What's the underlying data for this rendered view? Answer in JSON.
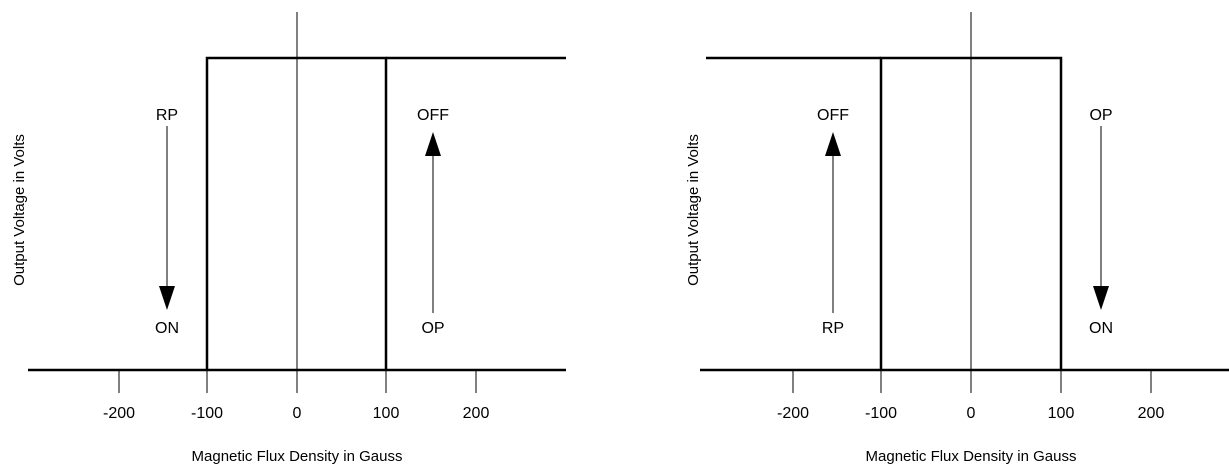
{
  "colors": {
    "line": "#000000",
    "background": "#ffffff"
  },
  "x_axis_label": "Magnetic Flux Density in Gauss",
  "y_axis_label": "Output Voltage in Volts",
  "ticks": [
    "-200",
    "-100",
    "0",
    "100",
    "200"
  ],
  "panels": [
    {
      "id": "left",
      "top_label": "RP",
      "bottom_label": "ON",
      "arrow_direction": "down",
      "right_top_label": "OFF",
      "right_bottom_label": "OP",
      "right_arrow_direction": "up"
    },
    {
      "id": "right",
      "top_label": "OFF",
      "bottom_label": "RP",
      "arrow_direction": "up",
      "right_top_label": "OP",
      "right_bottom_label": "ON",
      "right_arrow_direction": "down"
    }
  ]
}
